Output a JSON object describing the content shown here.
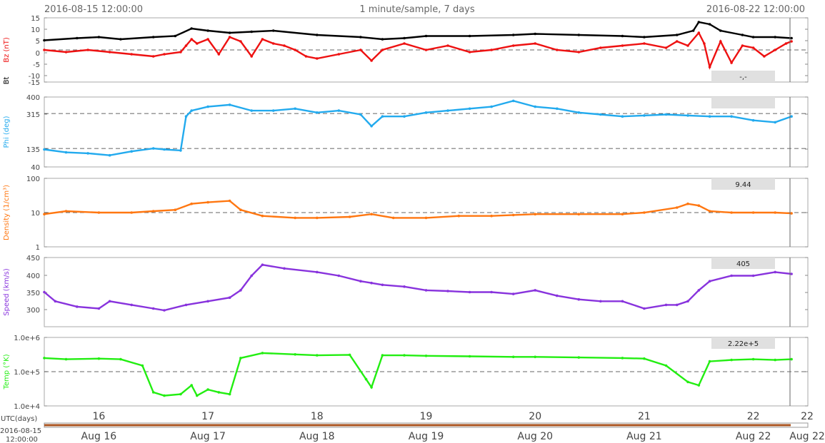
{
  "header": {
    "start": "2016-08-15 12:00:00",
    "center": "1 minute/sample, 7 days",
    "end": "2016-08-22 12:00:00"
  },
  "footer": {
    "utc_label": "UTC(days)",
    "start_date": "2016-08-15",
    "start_time": "12:00:00"
  },
  "colors": {
    "bz": "#ee1111",
    "bt": "#000000",
    "phi": "#22aaee",
    "density": "#ff7711",
    "speed": "#8833dd",
    "temp": "#22ee11",
    "timeline": "#aa5522"
  },
  "chart_data": [
    {
      "type": "scatter",
      "ylabel": "Bz (nT)",
      "ylabel2": "Bt",
      "ylim": [
        -15,
        15
      ],
      "yticks": [
        "15",
        "10",
        "5",
        "0",
        "-5",
        "-10",
        "-15"
      ],
      "dashed_y": 0,
      "badge": "-,-",
      "x_unit": "day-of-month (UTC)",
      "series": [
        {
          "key": "bz",
          "x": [
            15.5,
            15.7,
            15.9,
            16.1,
            16.3,
            16.5,
            16.6,
            16.75,
            16.8,
            16.85,
            16.9,
            17.0,
            17.1,
            17.2,
            17.3,
            17.4,
            17.5,
            17.6,
            17.7,
            17.8,
            17.9,
            18.0,
            18.2,
            18.4,
            18.5,
            18.6,
            18.8,
            19.0,
            19.2,
            19.4,
            19.6,
            19.8,
            20.0,
            20.2,
            20.4,
            20.6,
            20.8,
            21.0,
            21.2,
            21.3,
            21.4,
            21.5,
            21.55,
            21.6,
            21.7,
            21.8,
            21.9,
            22.0,
            22.1,
            22.2,
            22.3,
            22.35
          ],
          "y": [
            0,
            -1,
            0,
            -1,
            -2,
            -3,
            -2,
            -1,
            2,
            5,
            3,
            5,
            -2,
            6,
            4,
            -3,
            5,
            3,
            2,
            0,
            -3,
            -4,
            -2,
            0,
            -5,
            0,
            3,
            0,
            2,
            -1,
            0,
            2,
            3,
            0,
            -1,
            1,
            2,
            3,
            1,
            4,
            2,
            8,
            3,
            -8,
            4,
            -6,
            2,
            1,
            -3,
            0,
            3,
            4
          ]
        },
        {
          "key": "bt",
          "x": [
            15.5,
            15.8,
            16.0,
            16.2,
            16.5,
            16.7,
            16.85,
            17.0,
            17.2,
            17.4,
            17.6,
            18.0,
            18.4,
            18.6,
            18.8,
            19.0,
            19.4,
            19.8,
            20.0,
            20.4,
            20.8,
            21.0,
            21.3,
            21.45,
            21.5,
            21.6,
            21.7,
            21.9,
            22.0,
            22.2,
            22.35
          ],
          "y": [
            4.5,
            5.5,
            6,
            5,
            6,
            6.5,
            10,
            9,
            8,
            8.5,
            9,
            7,
            6,
            5,
            5.5,
            6.5,
            6.5,
            7,
            7.5,
            7,
            6.5,
            6,
            7,
            9,
            13,
            12,
            9,
            7,
            6,
            6,
            5.5
          ]
        }
      ]
    },
    {
      "type": "scatter",
      "ylabel": "Phi (deg)",
      "ylim": [
        40,
        400
      ],
      "yticks": [
        "400",
        "315",
        "135",
        "40"
      ],
      "dashed_y": [
        315,
        135
      ],
      "badge": "",
      "series": [
        {
          "key": "phi",
          "x": [
            15.5,
            15.7,
            15.9,
            16.1,
            16.3,
            16.5,
            16.6,
            16.75,
            16.8,
            16.85,
            17.0,
            17.2,
            17.4,
            17.6,
            17.8,
            18.0,
            18.2,
            18.4,
            18.5,
            18.6,
            18.8,
            19.0,
            19.2,
            19.4,
            19.6,
            19.8,
            20.0,
            20.2,
            20.4,
            20.6,
            20.8,
            21.0,
            21.2,
            21.4,
            21.6,
            21.8,
            22.0,
            22.2,
            22.35
          ],
          "y": [
            130,
            115,
            110,
            100,
            120,
            135,
            130,
            125,
            300,
            330,
            350,
            360,
            330,
            330,
            340,
            320,
            330,
            310,
            250,
            300,
            300,
            320,
            330,
            340,
            350,
            380,
            350,
            340,
            320,
            310,
            300,
            305,
            310,
            305,
            300,
            300,
            280,
            270,
            300
          ]
        }
      ]
    },
    {
      "type": "scatter",
      "ylabel": "Density (1/cm³)",
      "log": true,
      "ylim": [
        1,
        100
      ],
      "yticks": [
        "100",
        "10",
        "1"
      ],
      "dashed_y": 10,
      "badge": "9.44",
      "series": [
        {
          "key": "density",
          "x": [
            15.5,
            15.7,
            16.0,
            16.3,
            16.5,
            16.7,
            16.85,
            17.0,
            17.2,
            17.3,
            17.5,
            17.8,
            18.0,
            18.3,
            18.5,
            18.7,
            19.0,
            19.3,
            19.6,
            19.8,
            20.0,
            20.4,
            20.8,
            21.0,
            21.3,
            21.4,
            21.5,
            21.6,
            21.8,
            22.0,
            22.2,
            22.35
          ],
          "y": [
            9,
            11,
            10,
            10,
            11,
            12,
            18,
            20,
            22,
            12,
            8,
            7,
            7,
            7.5,
            9,
            7,
            7,
            8,
            8,
            8.5,
            9,
            9,
            9,
            10,
            14,
            18,
            16,
            11,
            10,
            10,
            10,
            9.5
          ]
        }
      ]
    },
    {
      "type": "scatter",
      "ylabel": "Speed (km/s)",
      "ylim": [
        260,
        450
      ],
      "yticks": [
        "450",
        "400",
        "350",
        "300"
      ],
      "dashed_y": null,
      "badge": "405",
      "series": [
        {
          "key": "speed",
          "x": [
            15.5,
            15.6,
            15.8,
            16.0,
            16.1,
            16.3,
            16.5,
            16.6,
            16.8,
            17.0,
            17.2,
            17.3,
            17.4,
            17.5,
            17.7,
            18.0,
            18.2,
            18.4,
            18.5,
            18.6,
            18.8,
            19.0,
            19.2,
            19.4,
            19.6,
            19.8,
            20.0,
            20.2,
            20.4,
            20.6,
            20.8,
            21.0,
            21.2,
            21.3,
            21.4,
            21.5,
            21.6,
            21.8,
            22.0,
            22.2,
            22.35
          ],
          "y": [
            355,
            330,
            315,
            310,
            330,
            320,
            310,
            305,
            320,
            330,
            340,
            360,
            400,
            430,
            420,
            410,
            400,
            385,
            380,
            375,
            370,
            360,
            358,
            355,
            355,
            350,
            360,
            345,
            335,
            330,
            330,
            310,
            320,
            320,
            330,
            360,
            385,
            400,
            400,
            410,
            405
          ]
        }
      ]
    },
    {
      "type": "scatter",
      "ylabel": "Temp (°K)",
      "log": true,
      "ylim": [
        10000,
        1000000
      ],
      "yticks": [
        "1.0e+6",
        "1.0e+5",
        "1.0e+4"
      ],
      "dashed_y": 100000,
      "badge": "2.22e+5",
      "series": [
        {
          "key": "temp",
          "x": [
            15.5,
            15.7,
            16.0,
            16.2,
            16.4,
            16.5,
            16.6,
            16.75,
            16.85,
            16.9,
            17.0,
            17.1,
            17.2,
            17.3,
            17.5,
            17.8,
            18.0,
            18.3,
            18.45,
            18.5,
            18.6,
            18.8,
            19.0,
            19.4,
            19.8,
            20.0,
            20.4,
            20.8,
            21.0,
            21.2,
            21.4,
            21.5,
            21.6,
            21.8,
            22.0,
            22.2,
            22.35
          ],
          "y": [
            250000,
            230000,
            240000,
            230000,
            150000,
            25000,
            20000,
            22000,
            40000,
            20000,
            30000,
            25000,
            22000,
            250000,
            350000,
            320000,
            300000,
            310000,
            60000,
            35000,
            300000,
            300000,
            290000,
            280000,
            270000,
            270000,
            260000,
            250000,
            240000,
            150000,
            50000,
            40000,
            200000,
            220000,
            230000,
            220000,
            230000
          ]
        }
      ]
    }
  ],
  "x_axis": {
    "ticks": [
      {
        "value": 16,
        "label": "16"
      },
      {
        "value": 17,
        "label": "17"
      },
      {
        "value": 18,
        "label": "18"
      },
      {
        "value": 19,
        "label": "19"
      },
      {
        "value": 20,
        "label": "20"
      },
      {
        "value": 21,
        "label": "21"
      },
      {
        "value": 22,
        "label": "22"
      },
      {
        "value": 22.5,
        "label": "22"
      }
    ],
    "date_ticks": [
      {
        "value": 16,
        "label": "Aug 16"
      },
      {
        "value": 17,
        "label": "Aug 17"
      },
      {
        "value": 18,
        "label": "Aug 18"
      },
      {
        "value": 19,
        "label": "Aug 19"
      },
      {
        "value": 20,
        "label": "Aug 20"
      },
      {
        "value": 21,
        "label": "Aug 21"
      },
      {
        "value": 22,
        "label": "Aug 22"
      },
      {
        "value": 22.5,
        "label": "Aug 22"
      }
    ]
  }
}
